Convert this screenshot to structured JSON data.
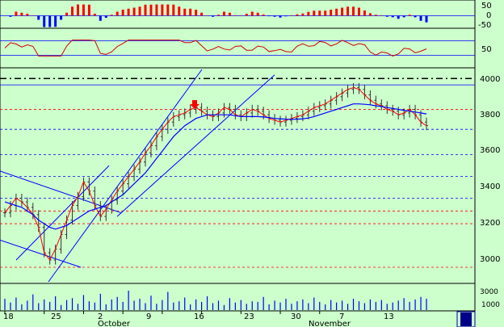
{
  "colors": {
    "background": "#ccffcc",
    "panel_border": "#000000",
    "grid_blue": "#0000ff",
    "price_red": "#ff0000",
    "ma_blue": "#0000ff",
    "histogram_red": "#ff0000",
    "histogram_blue": "#0000ff",
    "oscillator_red": "#cc0000",
    "candle_dark": "#333333",
    "volume_blue": "#0000ff",
    "arrow_red": "#ff0000"
  },
  "chart_data": {
    "type": "line",
    "title": "",
    "x_tick_labels": [
      "18",
      "25",
      "2",
      "9",
      "16",
      "23",
      "30",
      "7",
      "13"
    ],
    "month_labels": [
      "October",
      "November"
    ],
    "panels": [
      {
        "name": "histogram",
        "y_tick_labels": [
          "50",
          "0",
          "-50"
        ],
        "ylim": [
          -60,
          60
        ],
        "zero_line": 0
      },
      {
        "name": "oscillator",
        "y_tick_labels": [
          "50"
        ],
        "ylim": [
          0,
          100
        ],
        "guide_levels": [
          70,
          30
        ]
      },
      {
        "name": "price",
        "y_tick_labels": [
          "4000",
          "3800",
          "3600",
          "3400",
          "3200",
          "3000"
        ],
        "ylim": [
          2880,
          4050
        ],
        "series": [
          {
            "type": "ohlc",
            "x": [
              0,
              1,
              2,
              3,
              4,
              5,
              6,
              7,
              8,
              9,
              10,
              11,
              12,
              13,
              14,
              15,
              16,
              17,
              18,
              19,
              20,
              21,
              22,
              23,
              24,
              25,
              26,
              27,
              28,
              29,
              30,
              31,
              32,
              33,
              34,
              35,
              36,
              37,
              38,
              39,
              40,
              41,
              42,
              43,
              44,
              45,
              46,
              47,
              48,
              49,
              50,
              51,
              52,
              53,
              54,
              55,
              56,
              57,
              58,
              59,
              60,
              61,
              62,
              63,
              64,
              65,
              66,
              67,
              68,
              69,
              70,
              71,
              72,
              73,
              74,
              75
            ],
            "close": [
              3260,
              3300,
              3340,
              3320,
              3290,
              3250,
              3180,
              3040,
              3000,
              3060,
              3140,
              3220,
              3300,
              3350,
              3430,
              3380,
              3300,
              3240,
              3280,
              3330,
              3380,
              3420,
              3460,
              3500,
              3540,
              3590,
              3630,
              3680,
              3720,
              3760,
              3790,
              3800,
              3810,
              3830,
              3840,
              3820,
              3800,
              3790,
              3810,
              3840,
              3830,
              3800,
              3790,
              3810,
              3830,
              3820,
              3800,
              3780,
              3770,
              3760,
              3770,
              3780,
              3790,
              3800,
              3820,
              3840,
              3850,
              3860,
              3880,
              3900,
              3920,
              3940,
              3950,
              3940,
              3910,
              3880,
              3860,
              3850,
              3830,
              3820,
              3800,
              3810,
              3830,
              3800,
              3760,
              3740
            ]
          },
          {
            "name": "",
            "type": "moving_average",
            "values": [
              3320,
              3310,
              3300,
              3290,
              3270,
              3250,
              3220,
              3200,
              3180,
              3170,
              3180,
              3190,
              3210,
              3230,
              3250,
              3270,
              3280,
              3290,
              3300,
              3320,
              3340,
              3360,
              3390,
              3420,
              3450,
              3480,
              3520,
              3560,
              3600,
              3640,
              3680,
              3710,
              3740,
              3760,
              3780,
              3790,
              3800,
              3800,
              3800,
              3800,
              3800,
              3795,
              3790,
              3790,
              3790,
              3790,
              3788,
              3785,
              3780,
              3778,
              3776,
              3775,
              3776,
              3778,
              3782,
              3790,
              3800,
              3810,
              3820,
              3830,
              3840,
              3850,
              3860,
              3860,
              3858,
              3855,
              3850,
              3846,
              3840,
              3835,
              3830,
              3825,
              3820,
              3815,
              3810,
              3805
            ]
          }
        ],
        "horizontal_levels": [
          4000,
          3830,
          3720,
          3580,
          3460,
          3340,
          3270,
          3200,
          2960
        ],
        "resistance_level": 4000
      },
      {
        "name": "volume",
        "y_tick_labels": [
          "3000",
          "1000"
        ],
        "values": [
          1800,
          1200,
          2000,
          900,
          1500,
          2500,
          1100,
          1700,
          1300,
          2200,
          800,
          1600,
          1900,
          1000,
          2400,
          1400,
          1200,
          2600,
          900,
          1700,
          2100,
          1300,
          3100,
          1500,
          1800,
          1100,
          2300,
          1000,
          1600,
          2900,
          1200,
          1400,
          2000,
          900,
          1700,
          1300,
          2200,
          1100,
          1500,
          800,
          1900,
          1200,
          1600,
          1000,
          1400,
          1300,
          2100,
          900,
          1500,
          1200,
          1800,
          1000,
          1400,
          1700,
          1100,
          2000,
          1300,
          900,
          1600,
          1200,
          1500,
          1000,
          1800,
          1400,
          1100,
          1700,
          1300,
          1600,
          1000,
          1200,
          1500,
          1900,
          1300,
          1700,
          2100,
          1800
        ],
        "ylim": [
          0,
          4000
        ]
      }
    ],
    "annotation": "down-arrow"
  }
}
